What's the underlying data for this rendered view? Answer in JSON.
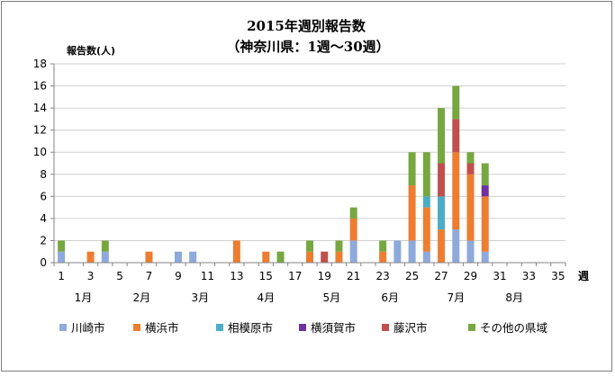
{
  "chart_data": {
    "type": "bar",
    "stacked": true,
    "title": "2015年週別報告数",
    "subtitle": "（神奈川県：1週～30週）",
    "ylabel": "報告数(人)",
    "xunit": "週",
    "ylim": [
      0,
      18
    ],
    "yticks": [
      0,
      2,
      4,
      6,
      8,
      10,
      12,
      14,
      16,
      18
    ],
    "xlim": [
      1,
      35
    ],
    "xticks": [
      1,
      3,
      5,
      7,
      9,
      11,
      13,
      15,
      17,
      19,
      21,
      23,
      25,
      27,
      29,
      31,
      33,
      35
    ],
    "grid": true,
    "legend_position": "bottom",
    "months": [
      {
        "label": "1月",
        "week": 2.5
      },
      {
        "label": "2月",
        "week": 6.5
      },
      {
        "label": "3月",
        "week": 10.5
      },
      {
        "label": "4月",
        "week": 15
      },
      {
        "label": "5月",
        "week": 19.5
      },
      {
        "label": "6月",
        "week": 23.5
      },
      {
        "label": "7月",
        "week": 28
      },
      {
        "label": "8月",
        "week": 32
      }
    ],
    "weeks": [
      1,
      2,
      3,
      4,
      5,
      6,
      7,
      8,
      9,
      10,
      11,
      12,
      13,
      14,
      15,
      16,
      17,
      18,
      19,
      20,
      21,
      22,
      23,
      24,
      25,
      26,
      27,
      28,
      29,
      30
    ],
    "series": [
      {
        "name": "川崎市",
        "color": "#8ea9db",
        "values": [
          1,
          0,
          0,
          1,
          0,
          0,
          0,
          0,
          1,
          1,
          0,
          0,
          0,
          0,
          0,
          0,
          0,
          0,
          0,
          0,
          2,
          0,
          0,
          2,
          2,
          1,
          0,
          3,
          2,
          1
        ]
      },
      {
        "name": "横浜市",
        "color": "#ed7d31",
        "values": [
          0,
          0,
          1,
          0,
          0,
          0,
          1,
          0,
          0,
          0,
          0,
          0,
          2,
          0,
          1,
          0,
          0,
          1,
          0,
          1,
          2,
          0,
          1,
          0,
          5,
          4,
          3,
          7,
          6,
          5
        ]
      },
      {
        "name": "相模原市",
        "color": "#4bacc6",
        "values": [
          0,
          0,
          0,
          0,
          0,
          0,
          0,
          0,
          0,
          0,
          0,
          0,
          0,
          0,
          0,
          0,
          0,
          0,
          0,
          0,
          0,
          0,
          0,
          0,
          0,
          1,
          3,
          0,
          0,
          0
        ]
      },
      {
        "name": "横須賀市",
        "color": "#7030a0",
        "values": [
          0,
          0,
          0,
          0,
          0,
          0,
          0,
          0,
          0,
          0,
          0,
          0,
          0,
          0,
          0,
          0,
          0,
          0,
          0,
          0,
          0,
          0,
          0,
          0,
          0,
          0,
          0,
          0,
          0,
          1
        ]
      },
      {
        "name": "藤沢市",
        "color": "#c0504d",
        "values": [
          0,
          0,
          0,
          0,
          0,
          0,
          0,
          0,
          0,
          0,
          0,
          0,
          0,
          0,
          0,
          0,
          0,
          0,
          1,
          0,
          0,
          0,
          0,
          0,
          0,
          0,
          3,
          3,
          1,
          0
        ]
      },
      {
        "name": "その他の県域",
        "color": "#77a740",
        "values": [
          1,
          0,
          0,
          1,
          0,
          0,
          0,
          0,
          0,
          0,
          0,
          0,
          0,
          0,
          0,
          1,
          0,
          1,
          0,
          1,
          1,
          0,
          1,
          0,
          3,
          4,
          5,
          3,
          1,
          2
        ]
      }
    ]
  }
}
